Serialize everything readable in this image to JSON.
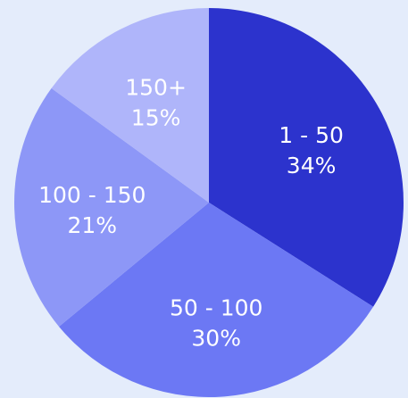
{
  "chart_data": {
    "type": "pie",
    "title": "",
    "start_angle_deg": 0,
    "direction": "clockwise",
    "slices": [
      {
        "label": "1 - 50",
        "value": 34,
        "value_label": "34%",
        "color": "#2c33cd"
      },
      {
        "label": "50 - 100",
        "value": 30,
        "value_label": "30%",
        "color": "#6c78f4"
      },
      {
        "label": "100 - 150",
        "value": 21,
        "value_label": "21%",
        "color": "#8d97f7"
      },
      {
        "label": "150+",
        "value": 15,
        "value_label": "15%",
        "color": "#afb5fa"
      }
    ]
  }
}
